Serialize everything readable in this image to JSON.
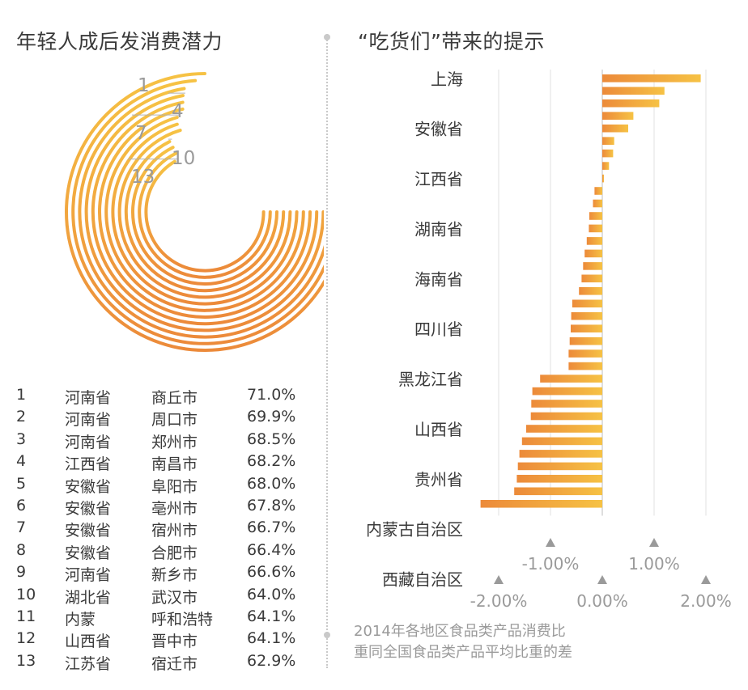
{
  "left": {
    "title": "年轻人成后发消费潜力",
    "ring_labels": [
      "1",
      "4",
      "7",
      "10",
      "13"
    ],
    "table": [
      {
        "rank": "1",
        "province": "河南省",
        "city": "商丘市",
        "value": "71.0%"
      },
      {
        "rank": "2",
        "province": "河南省",
        "city": "周口市",
        "value": "69.9%"
      },
      {
        "rank": "3",
        "province": "河南省",
        "city": "郑州市",
        "value": "68.5%"
      },
      {
        "rank": "4",
        "province": "江西省",
        "city": "南昌市",
        "value": "68.2%"
      },
      {
        "rank": "5",
        "province": "安徽省",
        "city": "阜阳市",
        "value": "68.0%"
      },
      {
        "rank": "6",
        "province": "安徽省",
        "city": "亳州市",
        "value": "67.8%"
      },
      {
        "rank": "7",
        "province": "安徽省",
        "city": "宿州市",
        "value": "66.7%"
      },
      {
        "rank": "8",
        "province": "安徽省",
        "city": "合肥市",
        "value": "66.4%"
      },
      {
        "rank": "9",
        "province": "河南省",
        "city": "新乡市",
        "value": "66.6%"
      },
      {
        "rank": "10",
        "province": "湖北省",
        "city": "武汉市",
        "value": "64.0%"
      },
      {
        "rank": "11",
        "province": "内蒙",
        "city": "呼和浩特",
        "value": "64.1%"
      },
      {
        "rank": "12",
        "province": "山西省",
        "city": "晋中市",
        "value": "64.1%"
      },
      {
        "rank": "13",
        "province": "江苏省",
        "city": "宿迁市",
        "value": "62.9%"
      }
    ]
  },
  "right": {
    "title": "“吃货们”带来的提示",
    "note_line1": "2014年各地区食品类产品消费比",
    "note_line2": "重同全国食品类产品平均比重的差"
  },
  "colors": {
    "accent_light": "#f6c244",
    "accent_dark": "#ec8a3a",
    "axis_grey": "#9a9a9a",
    "text": "#3a3a3a"
  },
  "chart_data": [
    {
      "type": "pie",
      "title": "年轻人成后发消费潜力",
      "categories": [
        "商丘市",
        "周口市",
        "郑州市",
        "南昌市",
        "阜阳市",
        "亳州市",
        "宿州市",
        "合肥市",
        "新乡市",
        "武汉市",
        "呼和浩特",
        "晋中市",
        "宿迁市"
      ],
      "values": [
        71.0,
        69.9,
        68.5,
        68.2,
        68.0,
        67.8,
        66.7,
        66.4,
        66.6,
        64.0,
        64.1,
        64.1,
        62.9
      ]
    },
    {
      "type": "bar",
      "orientation": "horizontal",
      "title": "“吃货们”带来的提示",
      "category_labels": [
        "上海",
        "安徽省",
        "江西省",
        "湖南省",
        "海南省",
        "四川省",
        "黑龙江省",
        "山西省",
        "贵州省",
        "内蒙古自治区",
        "西藏自治区"
      ],
      "values": [
        1.9,
        1.2,
        1.1,
        0.6,
        0.5,
        0.23,
        0.21,
        0.13,
        0.03,
        -0.15,
        -0.18,
        -0.25,
        -0.26,
        -0.3,
        -0.34,
        -0.37,
        -0.4,
        -0.45,
        -0.58,
        -0.6,
        -0.61,
        -0.63,
        -0.65,
        -0.65,
        -1.2,
        -1.35,
        -1.37,
        -1.38,
        -1.47,
        -1.55,
        -1.6,
        -1.63,
        -1.65,
        -1.7,
        -2.35
      ],
      "label_rows": [
        0,
        4,
        8,
        12,
        16,
        20,
        24,
        28,
        32,
        36,
        40
      ],
      "x_ticks": [
        "-2.00%",
        "-1.00%",
        "0.00%",
        "1.00%",
        "2.00%"
      ],
      "x_tick_values": [
        -2,
        -1,
        0,
        1,
        2
      ],
      "xlim": [
        -2.5,
        2.0
      ]
    }
  ]
}
